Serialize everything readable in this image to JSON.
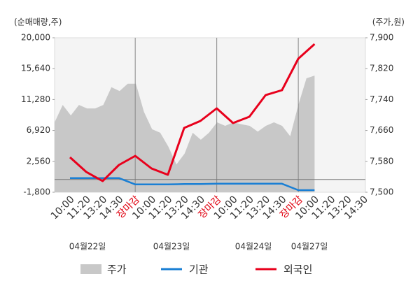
{
  "chart_data": {
    "type": "combo",
    "y_axis_label": "(순매매량,주)",
    "y2_axis_label": "(주가,원)",
    "categories": [
      "10:00",
      "11:20",
      "13:20",
      "14:30",
      "장마감",
      "10:00",
      "11:20",
      "13:20",
      "14:30",
      "장마감",
      "10:00",
      "11:20",
      "13:20",
      "14:30",
      "장마감",
      "10:00",
      "11:20",
      "13:20",
      "14:30"
    ],
    "date_labels": [
      "04월22일",
      "04월23일",
      "04월24일",
      "04월27일"
    ],
    "ylim": [
      -1800,
      20000
    ],
    "yticks": [
      {
        "value": -1800,
        "label": "-1,800"
      },
      {
        "value": 2560,
        "label": "2,560"
      },
      {
        "value": 6920,
        "label": "6,920"
      },
      {
        "value": 11280,
        "label": "11,280"
      },
      {
        "value": 15640,
        "label": "15,640"
      },
      {
        "value": 20000,
        "label": "20,000"
      }
    ],
    "y2lim": [
      7500,
      7900
    ],
    "y2ticks": [
      {
        "value": 7500,
        "label": "7,500"
      },
      {
        "value": 7580,
        "label": "7,580"
      },
      {
        "value": 7660,
        "label": "7,660"
      },
      {
        "value": 7740,
        "label": "7,740"
      },
      {
        "value": 7820,
        "label": "7,820"
      },
      {
        "value": 7900,
        "label": "7,900"
      }
    ],
    "price": {
      "name": "주가",
      "color": "#c8c8c8",
      "axis": "y2",
      "values": [
        7681,
        7726,
        7699,
        7726,
        7717,
        7717,
        7726,
        7772,
        7762,
        7781,
        7781,
        7708,
        7663,
        7654,
        7618,
        7572,
        7600,
        7654,
        7636,
        7654,
        7681,
        7672,
        7681,
        7676,
        7672,
        7657,
        7672,
        7681,
        7672,
        7645,
        7726,
        7795,
        7802
      ]
    },
    "series": [
      {
        "name": "기관",
        "color": "#1a7fd4",
        "values": [
          200,
          200,
          200,
          200,
          -700,
          -700,
          -700,
          -650,
          -650,
          -600,
          -600,
          -600,
          -600,
          -600,
          -1500,
          -1500,
          null,
          null,
          null
        ]
      },
      {
        "name": "외국인",
        "color": "#e8001c",
        "values": [
          3130,
          1060,
          -220,
          2050,
          3330,
          1550,
          670,
          7280,
          8260,
          10040,
          7970,
          8850,
          11910,
          12600,
          17040,
          19110,
          null,
          null,
          null
        ]
      }
    ]
  }
}
